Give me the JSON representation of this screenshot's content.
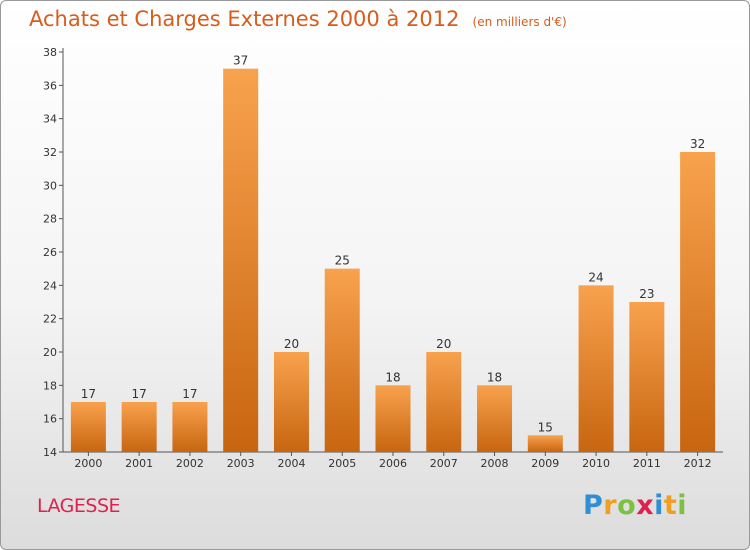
{
  "header": {
    "title": "Achats et Charges Externes 2000 à 2012",
    "subtitle": "(en milliers d'€)"
  },
  "location": "LAGESSE",
  "logo": {
    "letters": [
      "P",
      "r",
      "o",
      "x",
      "i",
      "t",
      "i"
    ],
    "colors": [
      "#2e8fd6",
      "#f0a020",
      "#7cc142",
      "#e02050",
      "#2e8fd6",
      "#f0a020",
      "#7cc142"
    ]
  },
  "chart_data": {
    "type": "bar",
    "title": "Achats et Charges Externes 2000 à 2012",
    "subtitle": "(en milliers d'€)",
    "categories": [
      "2000",
      "2001",
      "2002",
      "2003",
      "2004",
      "2005",
      "2006",
      "2007",
      "2008",
      "2009",
      "2010",
      "2011",
      "2012"
    ],
    "values": [
      17,
      17,
      17,
      37,
      20,
      25,
      18,
      20,
      18,
      15,
      24,
      23,
      32
    ],
    "ylim": [
      14,
      38
    ],
    "yticks": [
      14,
      16,
      18,
      20,
      22,
      24,
      26,
      28,
      30,
      32,
      34,
      36,
      38
    ],
    "grid": false,
    "colors": {
      "bar_light": "#f8a24e",
      "bar_dark": "#c86510",
      "axis": "#555555"
    }
  }
}
